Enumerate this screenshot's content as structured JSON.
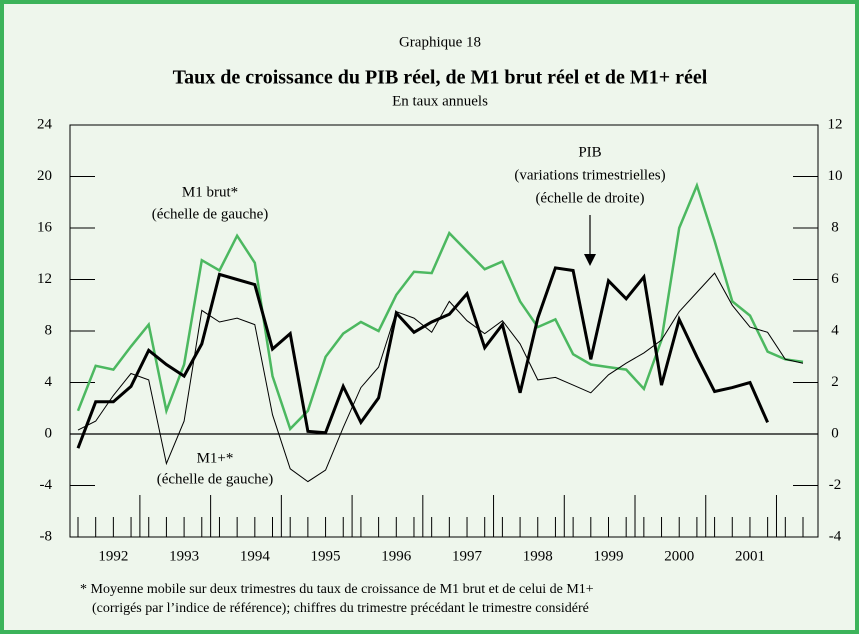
{
  "chart_data": {
    "type": "line",
    "header": "Graphique 18",
    "title": "Taux de croissance du PIB réel, de M1 brut réel et de M1+ réel",
    "subtitle": "En taux annuels",
    "categories": [
      null,
      null,
      "1992",
      null,
      null,
      null,
      "1993",
      null,
      null,
      null,
      "1994",
      null,
      null,
      null,
      "1995",
      null,
      null,
      null,
      "1996",
      null,
      null,
      null,
      "1997",
      null,
      null,
      null,
      "1998",
      null,
      null,
      null,
      "1999",
      null,
      null,
      null,
      "2000",
      null,
      null,
      null,
      "2001",
      null,
      null,
      null
    ],
    "ylim": [
      -8,
      24
    ],
    "yticks": [
      -8,
      -4,
      0,
      4,
      8,
      12,
      16,
      20,
      24
    ],
    "y2lim": [
      -4,
      12
    ],
    "y2ticks": [
      -4,
      -2,
      0,
      2,
      4,
      6,
      8,
      10,
      12
    ],
    "series": [
      {
        "color": "#4cb860",
        "width": 2.5,
        "axis": "y",
        "values": [
          1.8,
          5.3,
          5.0,
          6.8,
          8.5,
          1.8,
          5.4,
          13.5,
          12.7,
          15.4,
          13.3,
          4.5,
          0.4,
          1.8,
          6.0,
          7.8,
          8.7,
          8.0,
          10.8,
          12.6,
          12.5,
          15.6,
          14.2,
          12.8,
          13.4,
          10.3,
          8.3,
          8.9,
          6.2,
          5.4,
          5.2,
          5.0,
          3.5,
          7.3,
          16.0,
          19.3,
          15.0,
          10.3,
          9.2,
          6.4,
          5.8,
          5.6
        ]
      },
      {
        "color": "#000000",
        "width": 1,
        "axis": "y",
        "values": [
          0.3,
          1.0,
          3.0,
          4.7,
          4.2,
          -2.3,
          1.0,
          9.6,
          8.7,
          9.0,
          8.5,
          1.5,
          -2.7,
          -3.7,
          -2.8,
          0.5,
          3.6,
          5.2,
          9.5,
          9.0,
          7.9,
          10.3,
          8.8,
          7.8,
          8.8,
          7.0,
          4.2,
          4.4,
          3.8,
          3.2,
          4.6,
          5.5,
          6.3,
          7.3,
          9.5,
          11.0,
          12.5,
          10.0,
          8.3,
          7.9,
          5.8,
          5.5
        ]
      },
      {
        "color": "#000000",
        "width": 3,
        "axis": "y2",
        "values": [
          -0.55,
          1.25,
          1.25,
          1.85,
          3.25,
          2.7,
          2.25,
          3.5,
          6.2,
          6.0,
          5.8,
          3.3,
          3.9,
          0.1,
          0.05,
          1.85,
          0.45,
          1.4,
          4.7,
          3.95,
          4.35,
          4.65,
          5.45,
          3.35,
          4.25,
          1.6,
          4.5,
          6.45,
          6.35,
          2.9,
          5.95,
          5.25,
          6.1,
          1.9,
          4.45,
          3.0,
          1.65,
          1.8,
          2.0,
          0.45,
          null,
          null
        ]
      }
    ],
    "annotations": [
      "M1 brut*",
      "(échelle de gauche)",
      "M1+*",
      "(échelle de gauche)",
      "PIB",
      "(variations trimestrielles)",
      "(échelle de droite)"
    ],
    "footnote": [
      "*  Moyenne mobile sur deux trimestres du taux de croissance de M1 brut et de celui de M1+",
      "(corrigés par l’indice de référence); chiffres du trimestre précédant le trimestre considéré"
    ]
  }
}
